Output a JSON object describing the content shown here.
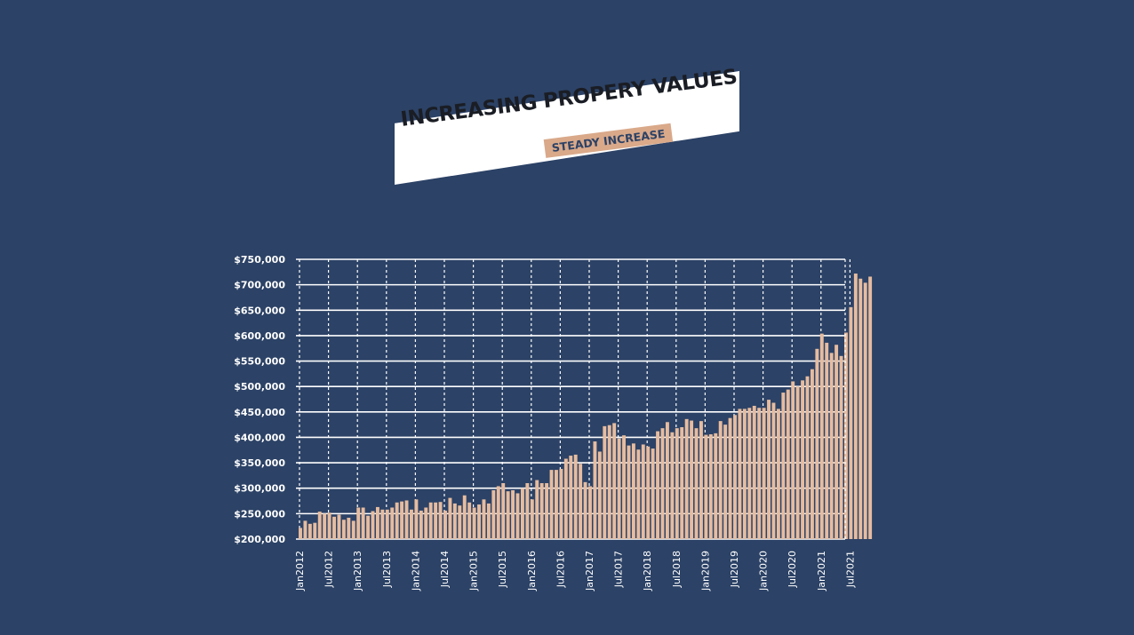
{
  "banner": {
    "title": "INCREASING PROPERY VALUES",
    "subtitle": "STEADY INCREASE"
  },
  "colors": {
    "background": "#2c4266",
    "bar": "#e6bca0",
    "grid": "#ffffff",
    "text": "#ffffff"
  },
  "chart_data": {
    "type": "bar",
    "ylim": [
      200000,
      750000
    ],
    "y_ticks": [
      200000,
      250000,
      300000,
      350000,
      400000,
      450000,
      500000,
      550000,
      600000,
      650000,
      700000,
      750000
    ],
    "y_tick_labels": [
      "$200,000",
      "$250,000",
      "$300,000",
      "$350,000",
      "$400,000",
      "$450,000",
      "$500,000",
      "$550,000",
      "$600,000",
      "$650,000",
      "$700,000",
      "$750,000"
    ],
    "x_tick_labels": [
      "Jan2012",
      "Jul2012",
      "Jan2013",
      "Jul2013",
      "Jan2014",
      "Jul2014",
      "Jan2015",
      "Jul2015",
      "Jan2016",
      "Jul2016",
      "Jan2017",
      "Jul2017",
      "Jan2018",
      "Jul2018",
      "Jan2019",
      "Jul2019",
      "Jan2020",
      "Jul2020",
      "Jan2021",
      "Jul2021"
    ],
    "x_start": "Jan 2012",
    "x_end": "Jul 2021",
    "grid": true,
    "values": [
      222000,
      236000,
      230000,
      232000,
      254000,
      250000,
      252000,
      244000,
      248000,
      238000,
      242000,
      236000,
      262000,
      262000,
      246000,
      255000,
      263000,
      258000,
      258000,
      262000,
      272000,
      274000,
      276000,
      258000,
      278000,
      256000,
      262000,
      272000,
      272000,
      273000,
      256000,
      281000,
      270000,
      266000,
      286000,
      272000,
      262000,
      268000,
      278000,
      270000,
      296000,
      304000,
      310000,
      294000,
      296000,
      290000,
      300000,
      310000,
      278000,
      316000,
      310000,
      310000,
      336000,
      336000,
      338000,
      358000,
      364000,
      366000,
      348000,
      312000,
      304000,
      392000,
      372000,
      422000,
      424000,
      428000,
      398000,
      404000,
      384000,
      388000,
      376000,
      386000,
      382000,
      378000,
      412000,
      418000,
      430000,
      410000,
      418000,
      420000,
      436000,
      433000,
      418000,
      432000,
      405000,
      406000,
      408000,
      432000,
      425000,
      438000,
      444000,
      456000,
      456000,
      458000,
      462000,
      458000,
      458000,
      474000,
      468000,
      456000,
      488000,
      494000,
      510000,
      500000,
      512000,
      520000,
      534000,
      574000,
      604000,
      586000,
      566000,
      582000,
      560000,
      606000,
      656000,
      722000,
      712000,
      704000,
      716000
    ]
  }
}
